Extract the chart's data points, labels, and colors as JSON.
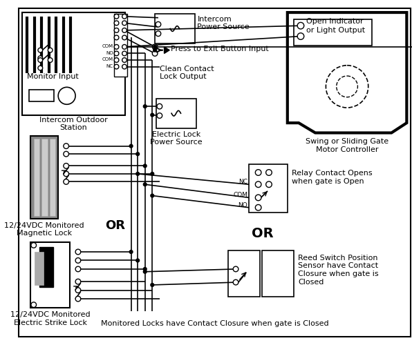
{
  "bg": "#ffffff",
  "lc": "#000000",
  "intercom_ps_label": "Intercom\nPower Source",
  "press_exit_label": "Press to Exit Button Input",
  "clean_contact_label": "Clean Contact\nLock Output",
  "electric_lock_ps_label": "Electric Lock\nPower Source",
  "monitor_input_label": "Monitor Input",
  "intercom_outdoor_label": "Intercom Outdoor\nStation",
  "magnetic_lock_label": "12/24VDC Monitored\nMagnetic Lock",
  "or1_label": "OR",
  "electric_strike_label": "12/24VDC Monitored\nElectric Strike Lock",
  "swing_gate_label": "Swing or Sliding Gate\nMotor Controller",
  "open_indicator_1": "Open Indicator",
  "open_indicator_2": "or Light Output",
  "relay_label": "Relay Contact Opens\nwhen gate is Open",
  "or2_label": "OR",
  "reed_switch_label": "Reed Switch Position\nSensor have Contact\nClosure when gate is\nClosed",
  "footer": "Monitored Locks have Contact Closure when gate is Closed",
  "nc": "NC",
  "com": "COM",
  "no": "NO"
}
